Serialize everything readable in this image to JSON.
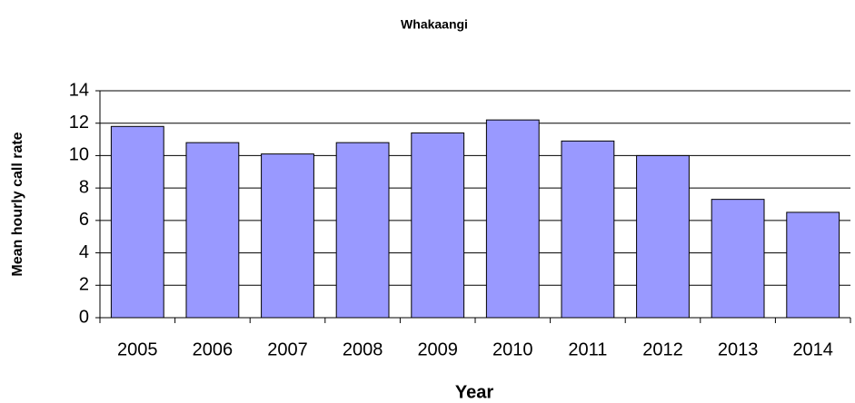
{
  "chart_data": {
    "type": "bar",
    "title": "Whakaangi",
    "x_label": "Year",
    "y_label": "Mean hourly call rate",
    "categories": [
      "2005",
      "2006",
      "2007",
      "2008",
      "2009",
      "2010",
      "2011",
      "2012",
      "2013",
      "2014"
    ],
    "values": [
      11.8,
      10.8,
      10.1,
      10.8,
      11.4,
      12.2,
      10.9,
      10.0,
      7.3,
      6.5
    ],
    "color": "#9999ff",
    "ylim": [
      0,
      14
    ],
    "yticks": [
      0,
      2,
      4,
      6,
      8,
      10,
      12,
      14
    ],
    "grid": true
  }
}
